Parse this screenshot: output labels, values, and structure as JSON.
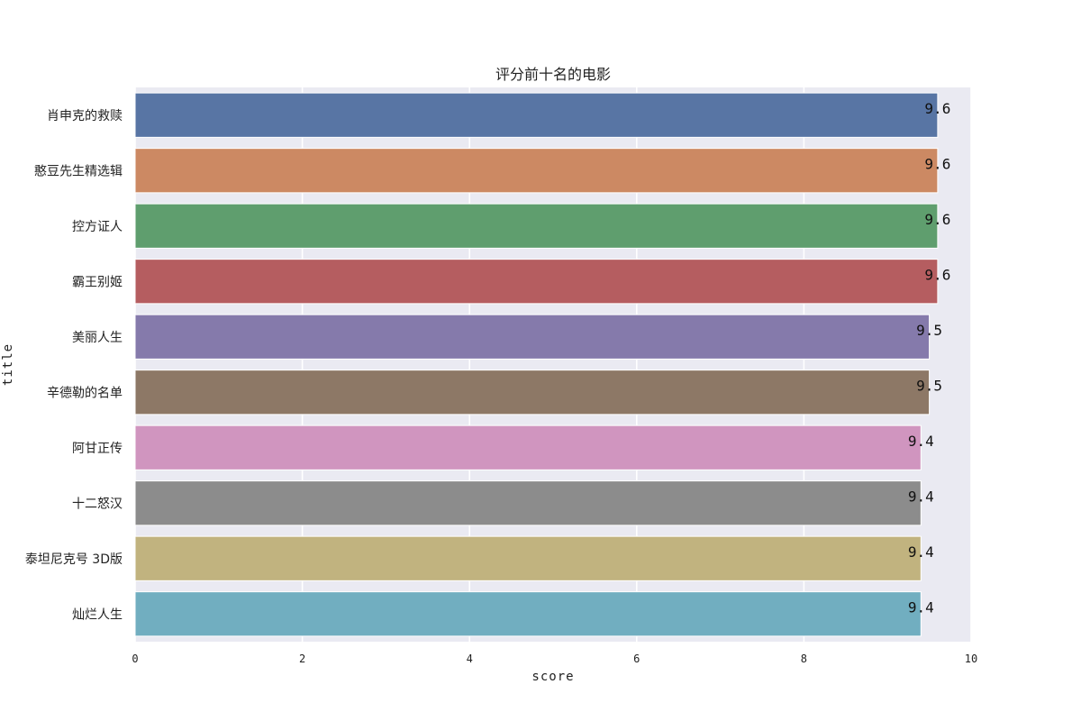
{
  "chart_data": {
    "type": "bar",
    "orientation": "horizontal",
    "title": "评分前十名的电影",
    "xlabel": "score",
    "ylabel": "title",
    "xlim": [
      0,
      10
    ],
    "xticks": [
      "0",
      "2",
      "4",
      "6",
      "8",
      "10"
    ],
    "grid": true,
    "categories": [
      "肖申克的救赎",
      "憨豆先生精选辑",
      "控方证人",
      "霸王别姬",
      "美丽人生",
      "辛德勒的名单",
      "阿甘正传",
      "十二怒汉",
      "泰坦尼克号 3D版",
      "灿烂人生"
    ],
    "values": [
      9.6,
      9.6,
      9.6,
      9.6,
      9.5,
      9.5,
      9.4,
      9.4,
      9.4,
      9.4
    ],
    "data_labels": [
      "9.6",
      "9.6",
      "9.6",
      "9.6",
      "9.5",
      "9.5",
      "9.4",
      "9.4",
      "9.4",
      "9.4"
    ],
    "colors": [
      "#5875a4",
      "#cc8963",
      "#5f9e6e",
      "#b55d60",
      "#857aab",
      "#8d7866",
      "#d095bf",
      "#8c8c8c",
      "#c1b37f",
      "#71aec0"
    ],
    "plot_background": "#eaeaf2",
    "grid_color": "#ffffff"
  }
}
